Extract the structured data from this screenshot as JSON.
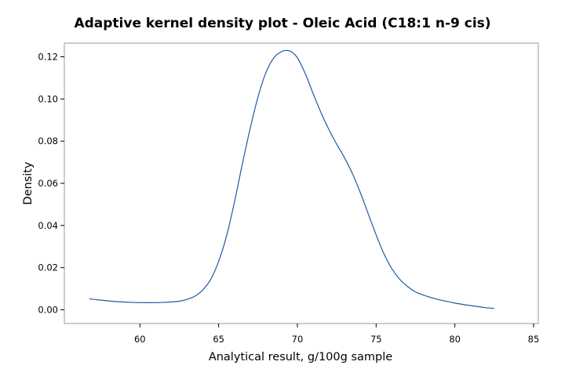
{
  "chart_data": {
    "type": "line",
    "title": "Adaptive kernel density plot - Oleic Acid (C18:1 n-9 cis)",
    "xlabel": "Analytical result, g/100g sample",
    "ylabel": "Density",
    "xlim": [
      55.2,
      85.3
    ],
    "ylim": [
      -0.0065,
      0.1265
    ],
    "x_ticks": [
      60,
      65,
      70,
      75,
      80,
      85
    ],
    "y_ticks": [
      0.0,
      0.02,
      0.04,
      0.06,
      0.08,
      0.1,
      0.12
    ],
    "grid": false,
    "legend": "none",
    "line_color": "#1f5aa6",
    "series": [
      {
        "x": [
          56.8,
          57.5,
          58.5,
          59.5,
          60.5,
          61.5,
          62.5,
          63.0,
          63.5,
          64.0,
          64.5,
          65.0,
          65.5,
          66.0,
          66.5,
          67.0,
          67.5,
          68.0,
          68.5,
          69.0,
          69.3,
          69.6,
          70.0,
          70.5,
          71.0,
          71.5,
          72.0,
          72.5,
          73.0,
          73.5,
          74.0,
          74.5,
          75.0,
          75.5,
          76.0,
          76.5,
          77.0,
          77.5,
          78.0,
          78.5,
          79.0,
          80.0,
          81.0,
          82.0,
          82.5
        ],
        "y": [
          0.0052,
          0.0046,
          0.0039,
          0.0035,
          0.0034,
          0.0035,
          0.0041,
          0.005,
          0.0065,
          0.0095,
          0.0145,
          0.023,
          0.035,
          0.051,
          0.069,
          0.086,
          0.101,
          0.1125,
          0.1195,
          0.1225,
          0.123,
          0.1225,
          0.1195,
          0.112,
          0.1025,
          0.0935,
          0.0855,
          0.0785,
          0.072,
          0.0645,
          0.0555,
          0.0455,
          0.0355,
          0.0265,
          0.0195,
          0.0145,
          0.011,
          0.0085,
          0.007,
          0.0058,
          0.0048,
          0.0032,
          0.002,
          0.001,
          0.0007
        ]
      }
    ]
  }
}
